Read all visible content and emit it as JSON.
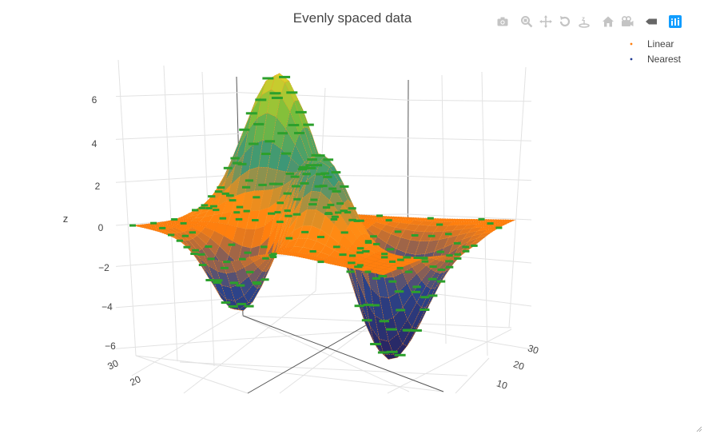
{
  "chart_data": {
    "type": "surface",
    "title": "Evenly spaced data",
    "zlabel": "z",
    "x_range": [
      0,
      35
    ],
    "y_range": [
      0,
      35
    ],
    "zlim": [
      -6,
      7
    ],
    "z_ticks": [
      6,
      4,
      2,
      0,
      -2,
      -4,
      -6
    ],
    "x_ticks": [
      10,
      20,
      30
    ],
    "y_ticks": [
      20,
      30
    ],
    "grid": true,
    "legend_position": "top-right",
    "series": [
      {
        "name": "Linear",
        "color": "#ff7f0e",
        "style": "interpolated surface points"
      },
      {
        "name": "Nearest",
        "color": "#1f3a93",
        "style": "interpolated surface points"
      },
      {
        "name": "",
        "color": "#2ca02c",
        "style": "sample data markers"
      }
    ],
    "peaks": [
      {
        "x": 10,
        "y": 22,
        "z": 7
      },
      {
        "x": 19,
        "y": 15,
        "z": 3.2
      },
      {
        "x": 22,
        "y": 10,
        "z": 3.2
      },
      {
        "x": 12,
        "y": 6,
        "z": -3.5
      },
      {
        "x": 25,
        "y": 21,
        "z": -6
      }
    ]
  },
  "legend": {
    "items": [
      {
        "label": "Linear",
        "color": "#ff7f0e"
      },
      {
        "label": "Nearest",
        "color": "#1f3a93"
      }
    ]
  },
  "modebar": {
    "buttons": [
      {
        "name": "camera-icon"
      },
      {
        "name": "zoom-icon"
      },
      {
        "name": "pan-icon"
      },
      {
        "name": "orbit-icon"
      },
      {
        "name": "turntable-icon"
      },
      {
        "name": "home-icon"
      },
      {
        "name": "camera-view-icon"
      },
      {
        "name": "spike-icon"
      },
      {
        "name": "plotly-logo-icon"
      }
    ]
  }
}
